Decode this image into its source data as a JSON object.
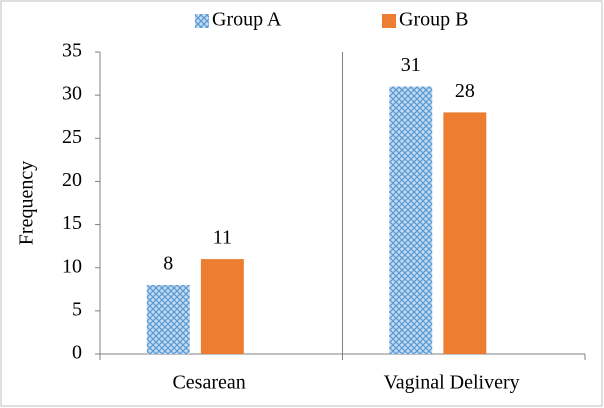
{
  "chart_data": {
    "type": "bar",
    "y_label": "Frequency",
    "categories": [
      "Cesarean",
      "Vaginal Delivery"
    ],
    "series": [
      {
        "name": "Group A",
        "color": "#5b9bd5",
        "pattern": "diamond-hatch",
        "values": [
          8,
          31
        ]
      },
      {
        "name": "Group B",
        "color": "#ed7d31",
        "values": [
          11,
          28
        ]
      }
    ],
    "ylim": [
      0,
      35
    ],
    "yticks": [
      0,
      5,
      10,
      15,
      20,
      25,
      30,
      35
    ],
    "grid": false,
    "legend": "top",
    "data_labels": true
  }
}
